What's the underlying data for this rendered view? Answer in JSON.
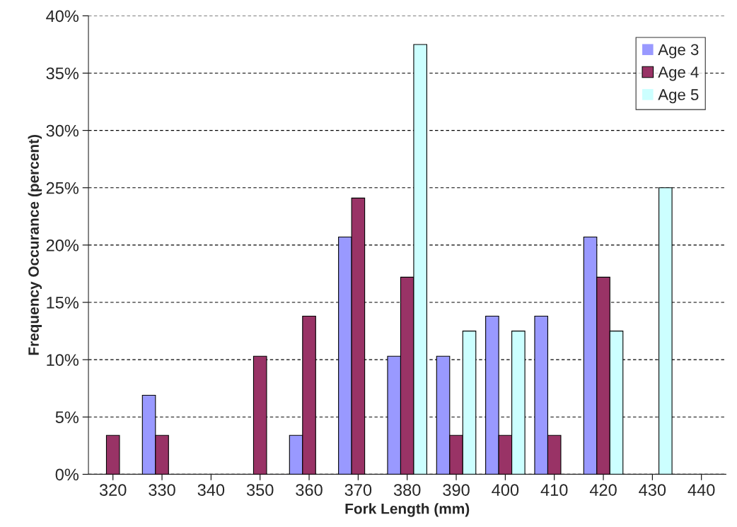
{
  "chart_data": {
    "type": "bar",
    "xlabel": "Fork Length (mm)",
    "ylabel": "Frequency Occurance (percent)",
    "categories": [
      "320",
      "330",
      "340",
      "350",
      "360",
      "370",
      "380",
      "390",
      "400",
      "410",
      "420",
      "430",
      "440"
    ],
    "series": [
      {
        "name": "Age 3",
        "color": "#9999ff",
        "values": [
          0,
          6.9,
          0,
          0,
          3.4,
          20.7,
          10.3,
          10.3,
          13.8,
          13.8,
          20.7,
          0,
          0
        ]
      },
      {
        "name": "Age 4",
        "color": "#993366",
        "values": [
          3.4,
          3.4,
          0,
          10.3,
          13.8,
          24.1,
          17.2,
          3.4,
          3.4,
          3.4,
          17.2,
          0,
          0
        ]
      },
      {
        "name": "Age 5",
        "color": "#ccffff",
        "values": [
          0,
          0,
          0,
          0,
          0,
          0,
          37.5,
          12.5,
          12.5,
          0,
          12.5,
          25,
          0
        ]
      }
    ],
    "ylim": [
      0,
      40
    ],
    "yticks": [
      {
        "value": 0,
        "label": "0%"
      },
      {
        "value": 5,
        "label": "5%"
      },
      {
        "value": 10,
        "label": "10%"
      },
      {
        "value": 15,
        "label": "15%"
      },
      {
        "value": 20,
        "label": "20%"
      },
      {
        "value": 25,
        "label": "25%"
      },
      {
        "value": 30,
        "label": "30%"
      },
      {
        "value": 35,
        "label": "35%"
      },
      {
        "value": 40,
        "label": "40%"
      }
    ],
    "grid": "y",
    "legend": "top right"
  }
}
